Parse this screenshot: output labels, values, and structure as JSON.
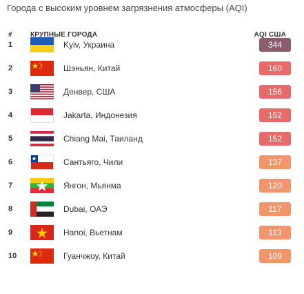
{
  "title": "Города с высоким уровнем загрязнения атмосферы (AQI)",
  "header": {
    "num": "#",
    "city": "КРУПНЫЕ ГОРОДА",
    "aqi": "AQI США"
  },
  "rows": [
    {
      "rank": "1",
      "city": "Kyiv, Украина",
      "aqi": "344",
      "flag": "flag-ukraine-icon",
      "color": "#8a5c6d"
    },
    {
      "rank": "2",
      "city": "Шэньян, Китай",
      "aqi": "160",
      "flag": "flag-china-icon",
      "color": "#e86a6a"
    },
    {
      "rank": "3",
      "city": "Денвер, США",
      "aqi": "156",
      "flag": "flag-usa-icon",
      "color": "#e86a6a"
    },
    {
      "rank": "4",
      "city": "Jakarta, Индонезия",
      "aqi": "152",
      "flag": "flag-indonesia-icon",
      "color": "#e86a6a"
    },
    {
      "rank": "5",
      "city": "Chiang Mai, Таиланд",
      "aqi": "152",
      "flag": "flag-thailand-icon",
      "color": "#e86a6a"
    },
    {
      "rank": "6",
      "city": "Сантьяго, Чили",
      "aqi": "137",
      "flag": "flag-chile-icon",
      "color": "#f3956b"
    },
    {
      "rank": "7",
      "city": "Янгон, Мьянма",
      "aqi": "120",
      "flag": "flag-myanmar-icon",
      "color": "#f3956b"
    },
    {
      "rank": "8",
      "city": "Dubai, ОАЭ",
      "aqi": "117",
      "flag": "flag-uae-icon",
      "color": "#f3956b"
    },
    {
      "rank": "9",
      "city": "Hanoi, Вьетнам",
      "aqi": "113",
      "flag": "flag-vietnam-icon",
      "color": "#f3956b"
    },
    {
      "rank": "10",
      "city": "Гуанчжоу, Китай",
      "aqi": "109",
      "flag": "flag-china-icon",
      "color": "#f3956b"
    }
  ]
}
